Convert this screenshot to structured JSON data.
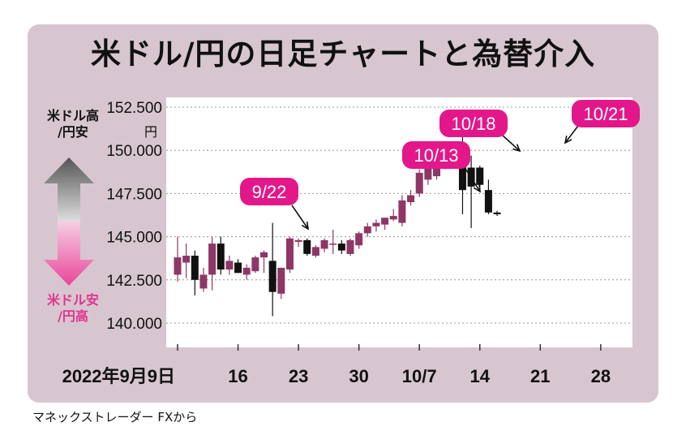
{
  "chart_data": {
    "type": "candlestick",
    "title": "米ドル/円の日足チャートと為替介入",
    "y_unit": "円",
    "ylim": [
      139.5,
      153
    ],
    "y_ticks": [
      "152.500",
      "150.000",
      "147.500",
      "145.000",
      "142.500",
      "140.000"
    ],
    "y_tick_values": [
      152.5,
      150,
      147.5,
      145,
      142.5,
      140
    ],
    "x_labels": [
      "2022年9月9日",
      "16",
      "23",
      "30",
      "10/7",
      "14",
      "21",
      "28"
    ],
    "x_label_days": [
      0,
      7,
      14,
      21,
      28,
      35,
      42,
      49
    ],
    "grid": true,
    "side_label_top": [
      "米ドル高",
      "/円安"
    ],
    "side_label_bottom": [
      "米ドル安",
      "/円高"
    ],
    "candles": [
      {
        "day": 0,
        "open": 142.8,
        "high": 145.0,
        "low": 142.4,
        "close": 143.8
      },
      {
        "day": 1,
        "open": 143.5,
        "high": 144.6,
        "low": 142.6,
        "close": 143.9
      },
      {
        "day": 2,
        "open": 143.9,
        "high": 144.2,
        "low": 141.6,
        "close": 142.5
      },
      {
        "day": 3,
        "open": 142.0,
        "high": 143.2,
        "low": 141.8,
        "close": 142.8
      },
      {
        "day": 4,
        "open": 142.8,
        "high": 145.0,
        "low": 141.9,
        "close": 144.6
      },
      {
        "day": 5,
        "open": 144.6,
        "high": 145.0,
        "low": 142.8,
        "close": 143.1
      },
      {
        "day": 6,
        "open": 143.1,
        "high": 143.9,
        "low": 142.8,
        "close": 143.6
      },
      {
        "day": 7,
        "open": 143.5,
        "high": 143.7,
        "low": 142.9,
        "close": 142.9
      },
      {
        "day": 8,
        "open": 142.8,
        "high": 143.4,
        "low": 142.5,
        "close": 143.2
      },
      {
        "day": 9,
        "open": 143.0,
        "high": 143.9,
        "low": 142.9,
        "close": 143.8
      },
      {
        "day": 10,
        "open": 143.8,
        "high": 144.2,
        "low": 142.9,
        "close": 144.1
      },
      {
        "day": 11,
        "open": 143.6,
        "high": 145.8,
        "low": 140.4,
        "close": 141.8
      },
      {
        "day": 12,
        "open": 141.7,
        "high": 143.2,
        "low": 141.4,
        "close": 143.2
      },
      {
        "day": 13,
        "open": 143.1,
        "high": 145.0,
        "low": 142.9,
        "close": 144.9
      },
      {
        "day": 14,
        "open": 144.7,
        "high": 144.9,
        "low": 144.4,
        "close": 144.8
      },
      {
        "day": 15,
        "open": 144.8,
        "high": 144.9,
        "low": 143.9,
        "close": 144.0
      },
      {
        "day": 16,
        "open": 143.9,
        "high": 144.5,
        "low": 143.8,
        "close": 144.4
      },
      {
        "day": 17,
        "open": 144.3,
        "high": 144.9,
        "low": 144.1,
        "close": 144.8
      },
      {
        "day": 18,
        "open": 144.6,
        "high": 145.4,
        "low": 144.0,
        "close": 144.6
      },
      {
        "day": 19,
        "open": 144.6,
        "high": 144.8,
        "low": 144.0,
        "close": 144.2
      },
      {
        "day": 20,
        "open": 144.0,
        "high": 144.9,
        "low": 143.9,
        "close": 144.8
      },
      {
        "day": 21,
        "open": 144.5,
        "high": 145.3,
        "low": 144.3,
        "close": 145.2
      },
      {
        "day": 22,
        "open": 145.2,
        "high": 145.8,
        "low": 145.0,
        "close": 145.6
      },
      {
        "day": 23,
        "open": 145.6,
        "high": 146.0,
        "low": 145.3,
        "close": 145.8
      },
      {
        "day": 24,
        "open": 145.7,
        "high": 146.0,
        "low": 145.4,
        "close": 146.1
      },
      {
        "day": 25,
        "open": 146.0,
        "high": 146.6,
        "low": 145.9,
        "close": 146.2
      },
      {
        "day": 26,
        "open": 145.8,
        "high": 147.4,
        "low": 145.6,
        "close": 147.1
      },
      {
        "day": 27,
        "open": 147.0,
        "high": 147.7,
        "low": 146.8,
        "close": 147.4
      },
      {
        "day": 28,
        "open": 147.5,
        "high": 148.9,
        "low": 147.3,
        "close": 148.7
      },
      {
        "day": 29,
        "open": 148.3,
        "high": 149.1,
        "low": 148.0,
        "close": 149.0
      },
      {
        "day": 30,
        "open": 148.5,
        "high": 149.0,
        "low": 148.3,
        "close": 149.1
      },
      {
        "day": 31,
        "open": 149.1,
        "high": 149.8,
        "low": 148.9,
        "close": 149.8
      },
      {
        "day": 32,
        "open": 149.6,
        "high": 150.3,
        "low": 149.5,
        "close": 150.1
      },
      {
        "day": 33,
        "open": 150.0,
        "high": 151.9,
        "low": 146.3,
        "close": 147.7
      },
      {
        "day": 34,
        "open": 149.0,
        "high": 149.7,
        "low": 145.5,
        "close": 147.9
      },
      {
        "day": 35,
        "open": 149.0,
        "high": 149.1,
        "low": 147.7,
        "close": 148.0
      },
      {
        "day": 36,
        "open": 147.7,
        "high": 148.3,
        "low": 146.3,
        "close": 146.4
      },
      {
        "day": 37,
        "open": 146.4,
        "high": 146.5,
        "low": 146.2,
        "close": 146.3
      }
    ],
    "annotations": [
      {
        "label": "9/22",
        "day": 11
      },
      {
        "label": "10/13",
        "day": 26
      },
      {
        "label": "10/18",
        "day": 29
      },
      {
        "label": "10/21",
        "day": 33
      }
    ],
    "colors": {
      "up": "#8e3766",
      "down": "#111111",
      "bubble": "#e4178a",
      "grid": "#999999"
    }
  },
  "source": "マネックストレーダー FXから"
}
